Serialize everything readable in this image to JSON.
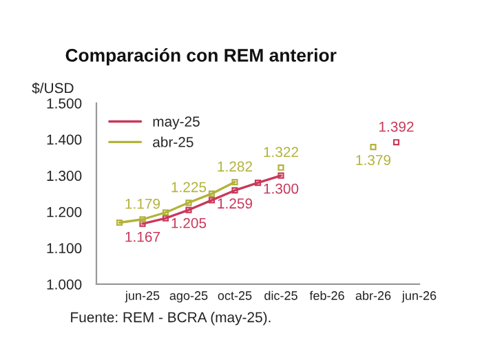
{
  "chart_data": {
    "type": "line",
    "title": "Comparación con REM anterior",
    "ylabel": "$/USD",
    "categories": [
      null,
      "jun-25",
      null,
      "ago-25",
      null,
      "oct-25",
      null,
      "dic-25",
      null,
      "feb-26",
      null,
      "abr-26",
      null,
      "jun-26"
    ],
    "series": [
      {
        "name": "may-25",
        "color": "#c8385a",
        "values": [
          null,
          1167,
          1182,
          1205,
          1232,
          1259,
          1280,
          1300,
          null,
          null,
          null,
          null,
          1392,
          null
        ],
        "value_labels": [
          null,
          "1.167",
          null,
          "1.205",
          null,
          "1.259",
          null,
          "1.300",
          null,
          null,
          null,
          null,
          "1.392",
          null
        ]
      },
      {
        "name": "abr-25",
        "color": "#b3b23a",
        "values": [
          1170,
          1179,
          1198,
          1225,
          1250,
          1282,
          null,
          1322,
          null,
          null,
          null,
          1379,
          null,
          null
        ],
        "value_labels": [
          null,
          "1.179",
          null,
          "1.225",
          null,
          "1.282",
          null,
          "1.322",
          null,
          null,
          null,
          "1.379",
          null,
          null
        ]
      }
    ],
    "ylim": [
      1000,
      1500
    ],
    "yticks": [
      {
        "value": 1000,
        "label": "1.000"
      },
      {
        "value": 1100,
        "label": "1.100"
      },
      {
        "value": 1200,
        "label": "1.200"
      },
      {
        "value": 1300,
        "label": "1.300"
      },
      {
        "value": 1400,
        "label": "1.400"
      },
      {
        "value": 1500,
        "label": "1.500"
      }
    ],
    "marker": "square",
    "line_style": "solid",
    "legend": "top left",
    "grid": false,
    "annotations": [
      "Fuente: REM - BCRA (may-25)."
    ]
  }
}
